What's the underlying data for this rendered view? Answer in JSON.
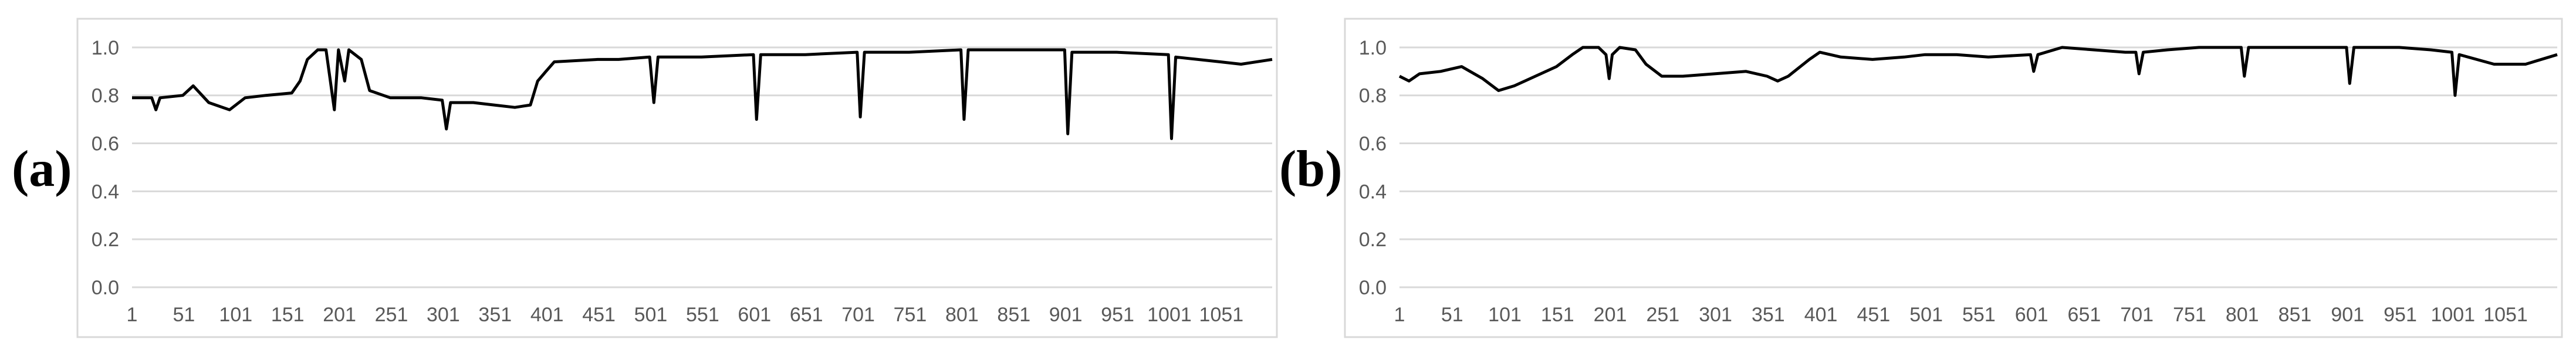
{
  "chart_data": [
    {
      "type": "line",
      "panel_label": "(a)",
      "x_tick_labels": [
        "1",
        "51",
        "101",
        "151",
        "201",
        "251",
        "301",
        "351",
        "401",
        "451",
        "501",
        "551",
        "601",
        "651",
        "701",
        "751",
        "801",
        "851",
        "901",
        "951",
        "1001",
        "1051"
      ],
      "y_tick_labels": [
        "0.0",
        "0.2",
        "0.4",
        "0.6",
        "0.8",
        "1.0"
      ],
      "xlim": [
        1,
        1100
      ],
      "ylim": [
        0,
        1.1
      ],
      "grid": "horizontal",
      "line_color": "#000000",
      "series": [
        {
          "points": [
            [
              1,
              0.79
            ],
            [
              20,
              0.79
            ],
            [
              24,
              0.74
            ],
            [
              28,
              0.79
            ],
            [
              50,
              0.8
            ],
            [
              60,
              0.84
            ],
            [
              75,
              0.77
            ],
            [
              95,
              0.74
            ],
            [
              110,
              0.79
            ],
            [
              130,
              0.8
            ],
            [
              155,
              0.81
            ],
            [
              163,
              0.86
            ],
            [
              170,
              0.95
            ],
            [
              180,
              0.99
            ],
            [
              188,
              0.99
            ],
            [
              196,
              0.74
            ],
            [
              200,
              0.99
            ],
            [
              206,
              0.86
            ],
            [
              210,
              0.99
            ],
            [
              222,
              0.95
            ],
            [
              230,
              0.82
            ],
            [
              250,
              0.79
            ],
            [
              280,
              0.79
            ],
            [
              300,
              0.78
            ],
            [
              304,
              0.66
            ],
            [
              308,
              0.77
            ],
            [
              330,
              0.77
            ],
            [
              350,
              0.76
            ],
            [
              370,
              0.75
            ],
            [
              385,
              0.76
            ],
            [
              392,
              0.86
            ],
            [
              400,
              0.9
            ],
            [
              408,
              0.94
            ],
            [
              450,
              0.95
            ],
            [
              470,
              0.95
            ],
            [
              500,
              0.96
            ],
            [
              504,
              0.77
            ],
            [
              508,
              0.96
            ],
            [
              550,
              0.96
            ],
            [
              600,
              0.97
            ],
            [
              603,
              0.7
            ],
            [
              607,
              0.97
            ],
            [
              650,
              0.97
            ],
            [
              700,
              0.98
            ],
            [
              703,
              0.71
            ],
            [
              707,
              0.98
            ],
            [
              750,
              0.98
            ],
            [
              800,
              0.99
            ],
            [
              803,
              0.7
            ],
            [
              807,
              0.99
            ],
            [
              850,
              0.99
            ],
            [
              900,
              0.99
            ],
            [
              903,
              0.64
            ],
            [
              907,
              0.98
            ],
            [
              950,
              0.98
            ],
            [
              1000,
              0.97
            ],
            [
              1003,
              0.62
            ],
            [
              1007,
              0.96
            ],
            [
              1050,
              0.94
            ],
            [
              1070,
              0.93
            ],
            [
              1100,
              0.95
            ]
          ]
        }
      ]
    },
    {
      "type": "line",
      "panel_label": "(b)",
      "x_tick_labels": [
        "1",
        "51",
        "101",
        "151",
        "201",
        "251",
        "301",
        "351",
        "401",
        "451",
        "501",
        "551",
        "601",
        "651",
        "701",
        "751",
        "801",
        "851",
        "901",
        "951",
        "1001",
        "1051"
      ],
      "y_tick_labels": [
        "0.0",
        "0.2",
        "0.4",
        "0.6",
        "0.8",
        "1.0"
      ],
      "xlim": [
        1,
        1100
      ],
      "ylim": [
        0,
        1.1
      ],
      "grid": "horizontal",
      "line_color": "#000000",
      "series": [
        {
          "points": [
            [
              1,
              0.88
            ],
            [
              10,
              0.86
            ],
            [
              20,
              0.89
            ],
            [
              40,
              0.9
            ],
            [
              60,
              0.92
            ],
            [
              80,
              0.87
            ],
            [
              95,
              0.82
            ],
            [
              110,
              0.84
            ],
            [
              130,
              0.88
            ],
            [
              150,
              0.92
            ],
            [
              165,
              0.97
            ],
            [
              175,
              1.0
            ],
            [
              190,
              1.0
            ],
            [
              197,
              0.97
            ],
            [
              200,
              0.87
            ],
            [
              203,
              0.97
            ],
            [
              210,
              1.0
            ],
            [
              225,
              0.99
            ],
            [
              235,
              0.93
            ],
            [
              250,
              0.88
            ],
            [
              270,
              0.88
            ],
            [
              300,
              0.89
            ],
            [
              330,
              0.9
            ],
            [
              350,
              0.88
            ],
            [
              360,
              0.86
            ],
            [
              370,
              0.88
            ],
            [
              390,
              0.95
            ],
            [
              400,
              0.98
            ],
            [
              420,
              0.96
            ],
            [
              450,
              0.95
            ],
            [
              480,
              0.96
            ],
            [
              500,
              0.97
            ],
            [
              530,
              0.97
            ],
            [
              560,
              0.96
            ],
            [
              600,
              0.97
            ],
            [
              603,
              0.9
            ],
            [
              607,
              0.97
            ],
            [
              630,
              1.0
            ],
            [
              660,
              0.99
            ],
            [
              690,
              0.98
            ],
            [
              700,
              0.98
            ],
            [
              703,
              0.89
            ],
            [
              707,
              0.98
            ],
            [
              730,
              0.99
            ],
            [
              760,
              1.0
            ],
            [
              800,
              1.0
            ],
            [
              803,
              0.88
            ],
            [
              807,
              1.0
            ],
            [
              850,
              1.0
            ],
            [
              900,
              1.0
            ],
            [
              903,
              0.85
            ],
            [
              907,
              1.0
            ],
            [
              950,
              1.0
            ],
            [
              980,
              0.99
            ],
            [
              1000,
              0.98
            ],
            [
              1003,
              0.8
            ],
            [
              1007,
              0.97
            ],
            [
              1040,
              0.93
            ],
            [
              1070,
              0.93
            ],
            [
              1100,
              0.97
            ]
          ]
        }
      ]
    }
  ]
}
